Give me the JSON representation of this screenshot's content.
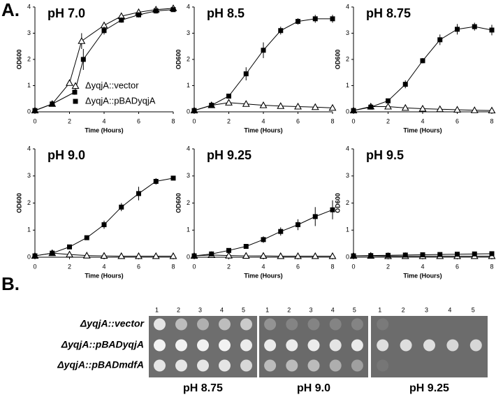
{
  "panel_labels": [
    "A.",
    "B."
  ],
  "chart_data": [
    {
      "type": "line",
      "title": "pH 7.0",
      "xlabel": "Time (Hours)",
      "ylabel": "OD600",
      "xlim": [
        0,
        8
      ],
      "ylim": [
        0,
        4
      ],
      "xticks": [
        0,
        2,
        4,
        6,
        8
      ],
      "yticks": [
        0,
        1,
        2,
        3,
        4
      ],
      "legend": true,
      "series": [
        {
          "name": "ΔyqjA::vector",
          "marker": "triangle",
          "color": "#000000",
          "x": [
            0,
            1,
            2,
            2.7,
            4,
            5,
            6,
            7,
            8
          ],
          "values": [
            0.05,
            0.3,
            1.1,
            2.7,
            3.3,
            3.65,
            3.8,
            3.9,
            3.95
          ],
          "errors": [
            0,
            0,
            0,
            0.3,
            0,
            0,
            0,
            0,
            0
          ]
        },
        {
          "name": "ΔyqjA::pBADyqjA",
          "marker": "square",
          "color": "#000000",
          "x": [
            0,
            1,
            2.3,
            2.8,
            4,
            5,
            6,
            7,
            8
          ],
          "values": [
            0.05,
            0.3,
            0.75,
            2.0,
            3.1,
            3.5,
            3.7,
            3.85,
            3.9
          ],
          "errors": [
            0,
            0,
            0.1,
            0.4,
            0.15,
            0.1,
            0.1,
            0.1,
            0.05
          ]
        }
      ]
    },
    {
      "type": "line",
      "title": "pH 8.5",
      "xlabel": "Time (Hours)",
      "ylabel": "OD600",
      "xlim": [
        0,
        8
      ],
      "ylim": [
        0,
        4
      ],
      "xticks": [
        0,
        2,
        4,
        6,
        8
      ],
      "yticks": [
        0,
        1,
        2,
        3,
        4
      ],
      "series": [
        {
          "marker": "triangle",
          "color": "#000000",
          "x": [
            0,
            1,
            2,
            3,
            4,
            5,
            6,
            7,
            8
          ],
          "values": [
            0.05,
            0.25,
            0.35,
            0.3,
            0.25,
            0.22,
            0.2,
            0.18,
            0.15
          ]
        },
        {
          "marker": "square",
          "color": "#000000",
          "x": [
            0,
            1,
            2,
            3,
            4,
            5,
            6,
            7,
            8
          ],
          "values": [
            0.05,
            0.25,
            0.6,
            1.45,
            2.35,
            3.1,
            3.45,
            3.55,
            3.55
          ],
          "errors": [
            0,
            0,
            0.05,
            0.25,
            0.3,
            0.15,
            0.12,
            0.15,
            0.15
          ]
        }
      ]
    },
    {
      "type": "line",
      "title": "pH 8.75",
      "xlabel": "Time (Hours)",
      "ylabel": "OD600",
      "xlim": [
        0,
        8
      ],
      "ylim": [
        0,
        4
      ],
      "xticks": [
        0,
        2,
        4,
        6,
        8
      ],
      "yticks": [
        0,
        1,
        2,
        3,
        4
      ],
      "series": [
        {
          "marker": "triangle",
          "color": "#000000",
          "x": [
            0,
            1,
            2,
            3,
            4,
            5,
            6,
            7,
            8
          ],
          "values": [
            0.05,
            0.2,
            0.2,
            0.15,
            0.12,
            0.1,
            0.08,
            0.06,
            0.05
          ]
        },
        {
          "marker": "square",
          "color": "#000000",
          "x": [
            0,
            1,
            2,
            3,
            4,
            5,
            6,
            7,
            8
          ],
          "values": [
            0.05,
            0.18,
            0.42,
            1.05,
            1.95,
            2.75,
            3.15,
            3.25,
            3.12
          ],
          "errors": [
            0,
            0,
            0.05,
            0.15,
            0.1,
            0.2,
            0.2,
            0.15,
            0.2
          ]
        }
      ]
    },
    {
      "type": "line",
      "title": "pH 9.0",
      "xlabel": "Time (Hours)",
      "ylabel": "OD600",
      "xlim": [
        0,
        8
      ],
      "ylim": [
        0,
        4
      ],
      "xticks": [
        0,
        2,
        4,
        6,
        8
      ],
      "yticks": [
        0,
        1,
        2,
        3,
        4
      ],
      "series": [
        {
          "marker": "triangle",
          "color": "#000000",
          "x": [
            0,
            1,
            2,
            3,
            4,
            5,
            6,
            7,
            8
          ],
          "values": [
            0.05,
            0.15,
            0.1,
            0.06,
            0.05,
            0.04,
            0.04,
            0.04,
            0.04
          ]
        },
        {
          "marker": "square",
          "color": "#000000",
          "x": [
            0,
            1,
            2,
            3,
            4,
            5,
            6,
            7,
            8
          ],
          "values": [
            0.05,
            0.15,
            0.38,
            0.72,
            1.2,
            1.85,
            2.35,
            2.8,
            2.92
          ],
          "errors": [
            0,
            0,
            0.05,
            0.05,
            0.15,
            0.15,
            0.25,
            0.12,
            0.05
          ]
        }
      ]
    },
    {
      "type": "line",
      "title": "pH 9.25",
      "xlabel": "Time (Hours)",
      "ylabel": "OD600",
      "xlim": [
        0,
        8
      ],
      "ylim": [
        0,
        4
      ],
      "xticks": [
        0,
        2,
        4,
        6,
        8
      ],
      "yticks": [
        0,
        1,
        2,
        3,
        4
      ],
      "series": [
        {
          "marker": "triangle",
          "color": "#000000",
          "x": [
            0,
            1,
            2,
            3,
            4,
            5,
            6,
            7,
            8
          ],
          "values": [
            0.05,
            0.08,
            0.06,
            0.05,
            0.05,
            0.04,
            0.04,
            0.04,
            0.04
          ]
        },
        {
          "marker": "square",
          "color": "#000000",
          "x": [
            0,
            1,
            2,
            3,
            4,
            5,
            6,
            7,
            8
          ],
          "values": [
            0.05,
            0.12,
            0.25,
            0.4,
            0.65,
            0.95,
            1.2,
            1.5,
            1.75
          ],
          "errors": [
            0,
            0,
            0.03,
            0.05,
            0.12,
            0.15,
            0.2,
            0.35,
            0.35
          ]
        }
      ]
    },
    {
      "type": "line",
      "title": "pH 9.5",
      "xlabel": "Time (Hours)",
      "ylabel": "OD600",
      "xlim": [
        0,
        8
      ],
      "ylim": [
        0,
        4
      ],
      "xticks": [
        0,
        2,
        4,
        6,
        8
      ],
      "yticks": [
        0,
        1,
        2,
        3,
        4
      ],
      "series": [
        {
          "marker": "triangle",
          "color": "#000000",
          "x": [
            0,
            1,
            2,
            3,
            4,
            5,
            6,
            7,
            8
          ],
          "values": [
            0.05,
            0.05,
            0.04,
            0.04,
            0.04,
            0.04,
            0.04,
            0.04,
            0.04
          ]
        },
        {
          "marker": "square",
          "color": "#000000",
          "x": [
            0,
            1,
            2,
            3,
            4,
            5,
            6,
            7,
            8
          ],
          "values": [
            0.05,
            0.06,
            0.07,
            0.08,
            0.09,
            0.1,
            0.11,
            0.12,
            0.13
          ]
        }
      ]
    }
  ],
  "panel_b": {
    "row_labels": [
      "ΔyqjA::vector",
      "ΔyqjA::pBADyqjA",
      "ΔyqjA::pBADmdfA"
    ],
    "plates": [
      {
        "label": "pH 8.75",
        "columns": [
          "1",
          "2",
          "3",
          "4",
          "5"
        ]
      },
      {
        "label": "pH 9.0",
        "columns": [
          "1",
          "2",
          "3",
          "4",
          "5"
        ]
      },
      {
        "label": "pH 9.25",
        "columns": [
          "1",
          "2",
          "3",
          "4",
          "5"
        ]
      }
    ]
  }
}
